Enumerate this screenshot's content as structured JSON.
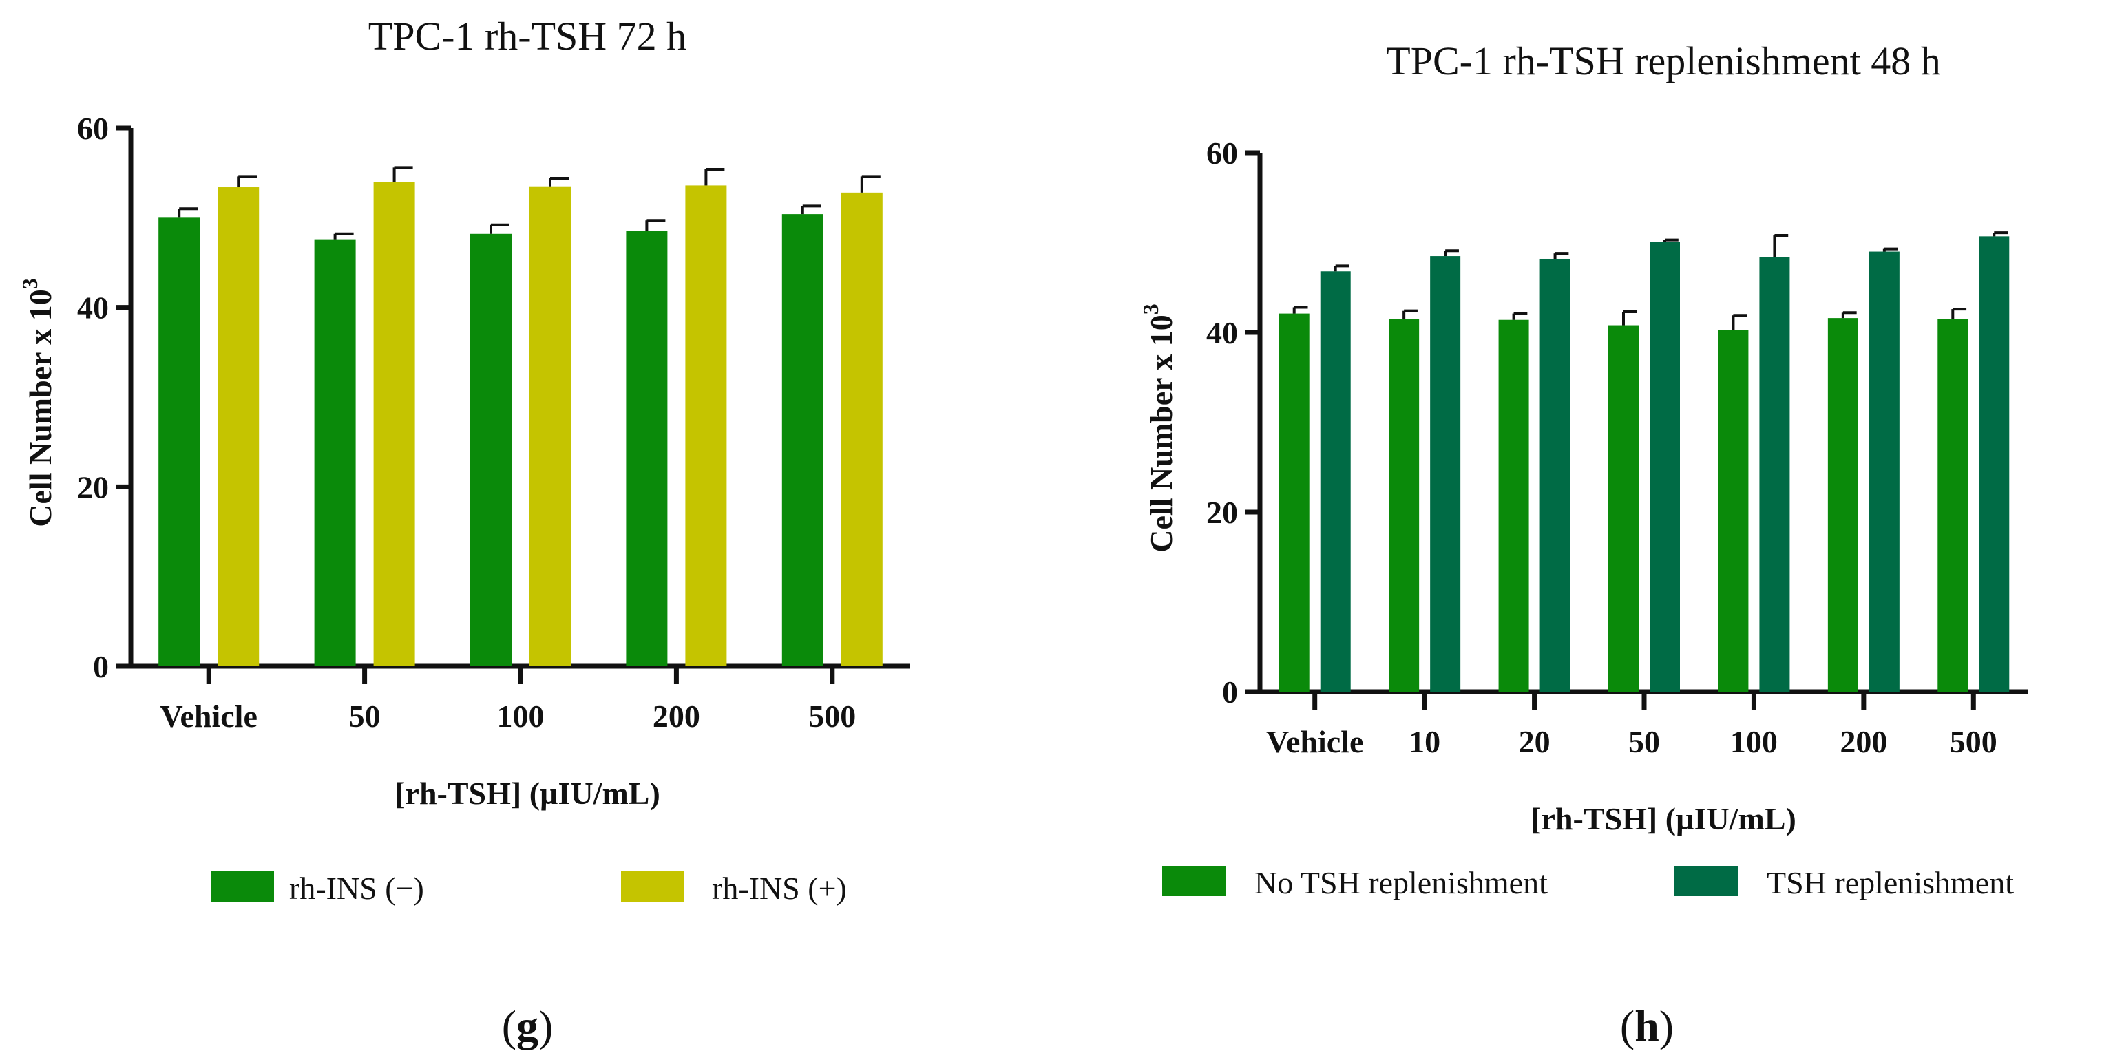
{
  "chart_data": [
    {
      "type": "bar",
      "panel_label": "g",
      "title": "TPC-1 rh-TSH 72 h",
      "xlabel": "[rh-TSH] (µIU/mL)",
      "ylabel": "Cell Number x 10",
      "ylabel_sup": "3",
      "ylim": [
        0,
        60
      ],
      "yticks": [
        0,
        20,
        40,
        60
      ],
      "categories": [
        "Vehicle",
        "50",
        "100",
        "200",
        "500"
      ],
      "series": [
        {
          "name": "rh-INS (−)",
          "color": "#0a8a0a",
          "values": [
            50.0,
            47.6,
            48.2,
            48.5,
            50.4
          ],
          "errors": [
            1.0,
            0.6,
            1.0,
            1.2,
            0.9
          ]
        },
        {
          "name": "rh-INS (+)",
          "color": "#c5c400",
          "values": [
            53.4,
            54.0,
            53.5,
            53.6,
            52.8
          ],
          "errors": [
            1.2,
            1.6,
            0.9,
            1.8,
            1.8
          ]
        }
      ],
      "legend_position": "bottom"
    },
    {
      "type": "bar",
      "panel_label": "h",
      "title": "TPC-1 rh-TSH replenishment 48 h",
      "xlabel": "[rh-TSH] (µIU/mL)",
      "ylabel": "Cell Number x 10",
      "ylabel_sup": "3",
      "ylim": [
        0,
        60
      ],
      "yticks": [
        0,
        20,
        40,
        60
      ],
      "categories": [
        "Vehicle",
        "10",
        "20",
        "50",
        "100",
        "200",
        "500"
      ],
      "series": [
        {
          "name": "No TSH replenishment",
          "color": "#0a8a0a",
          "values": [
            42.1,
            41.5,
            41.4,
            40.8,
            40.3,
            41.6,
            41.5
          ],
          "errors": [
            0.7,
            0.9,
            0.7,
            1.5,
            1.6,
            0.6,
            1.1
          ]
        },
        {
          "name": "TSH replenishment",
          "color": "#006b45",
          "values": [
            46.8,
            48.5,
            48.2,
            50.1,
            48.4,
            49.0,
            50.7
          ],
          "errors": [
            0.6,
            0.6,
            0.6,
            0.2,
            2.4,
            0.3,
            0.4
          ]
        }
      ],
      "legend_position": "bottom"
    }
  ]
}
